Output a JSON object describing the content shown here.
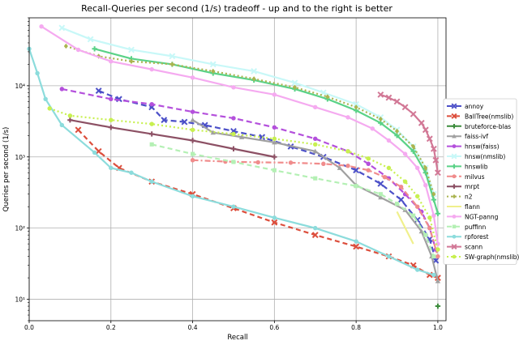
{
  "chart_data": {
    "type": "line",
    "title": "Recall-Queries per second (1/s) tradeoff - up and to the right is better",
    "xlabel": "Recall",
    "ylabel": "Queries per second (1/s)",
    "xlim": [
      0.0,
      1.02
    ],
    "ylim": [
      5,
      90000
    ],
    "yscale": "log",
    "grid": true,
    "legend_position": "right",
    "x_ticks": [
      0.0,
      0.2,
      0.4,
      0.6,
      0.8,
      1.0
    ],
    "x_tick_labels": [
      "0.0",
      "0.2",
      "0.4",
      "0.6",
      "0.8",
      "1.0"
    ],
    "y_ticks": [
      10,
      100,
      1000,
      10000
    ],
    "y_tick_labels": [
      "10¹",
      "10²",
      "10³",
      "10⁴"
    ],
    "series": [
      {
        "name": "annoy",
        "color": "#4c50c8",
        "dash": "7,4",
        "marker": "x",
        "points": [
          [
            0.17,
            8500
          ],
          [
            0.22,
            6500
          ],
          [
            0.3,
            5000
          ],
          [
            0.33,
            3300
          ],
          [
            0.38,
            3100
          ],
          [
            0.43,
            2800
          ],
          [
            0.5,
            2300
          ],
          [
            0.57,
            1900
          ],
          [
            0.64,
            1400
          ],
          [
            0.72,
            1000
          ],
          [
            0.8,
            650
          ],
          [
            0.86,
            420
          ],
          [
            0.91,
            250
          ],
          [
            0.95,
            130
          ],
          [
            0.98,
            70
          ],
          [
            0.995,
            35
          ]
        ]
      },
      {
        "name": "BallTree(nmslib)",
        "color": "#dc4e3c",
        "dash": "6,4",
        "marker": "x",
        "points": [
          [
            0.12,
            2400
          ],
          [
            0.17,
            1200
          ],
          [
            0.22,
            700
          ],
          [
            0.3,
            450
          ],
          [
            0.4,
            300
          ],
          [
            0.5,
            190
          ],
          [
            0.6,
            120
          ],
          [
            0.7,
            80
          ],
          [
            0.8,
            55
          ],
          [
            0.88,
            40
          ],
          [
            0.94,
            30
          ],
          [
            0.98,
            22
          ],
          [
            1.0,
            20
          ]
        ]
      },
      {
        "name": "bruteforce-blas",
        "color": "#3c8c3c",
        "dash": "",
        "marker": "plus",
        "points": [
          [
            1.0,
            8
          ]
        ]
      },
      {
        "name": "faiss-ivf",
        "color": "#a0a0a0",
        "dash": "",
        "marker": "triangle",
        "points": [
          [
            0.4,
            3300
          ],
          [
            0.45,
            2200
          ],
          [
            0.52,
            1900
          ],
          [
            0.6,
            1600
          ],
          [
            0.7,
            1200
          ],
          [
            0.76,
            700
          ],
          [
            0.8,
            400
          ],
          [
            0.86,
            270
          ],
          [
            0.92,
            180
          ],
          [
            0.96,
            90
          ],
          [
            0.985,
            40
          ],
          [
            1.0,
            18
          ]
        ]
      },
      {
        "name": "hnsw(faiss)",
        "color": "#b450dc",
        "dash": "7,4",
        "marker": "circle",
        "points": [
          [
            0.08,
            9000
          ],
          [
            0.2,
            6500
          ],
          [
            0.3,
            5500
          ],
          [
            0.4,
            4300
          ],
          [
            0.5,
            3500
          ],
          [
            0.6,
            2600
          ],
          [
            0.7,
            1800
          ],
          [
            0.78,
            1200
          ],
          [
            0.83,
            800
          ],
          [
            0.88,
            500
          ],
          [
            0.92,
            300
          ],
          [
            0.96,
            170
          ],
          [
            0.98,
            100
          ],
          [
            0.995,
            50
          ]
        ]
      },
      {
        "name": "hnsw(nmslib)",
        "color": "#c8f8f8",
        "dash": "",
        "marker": "x",
        "points": [
          [
            0.08,
            65000
          ],
          [
            0.15,
            45000
          ],
          [
            0.25,
            32000
          ],
          [
            0.35,
            26000
          ],
          [
            0.45,
            20000
          ],
          [
            0.55,
            16000
          ],
          [
            0.65,
            11000
          ],
          [
            0.72,
            8000
          ],
          [
            0.8,
            5500
          ],
          [
            0.86,
            3600
          ],
          [
            0.9,
            2400
          ],
          [
            0.94,
            1400
          ],
          [
            0.97,
            700
          ],
          [
            0.99,
            300
          ]
        ]
      },
      {
        "name": "hnswlib",
        "color": "#5ad287",
        "dash": "",
        "marker": "plus",
        "points": [
          [
            0.16,
            33000
          ],
          [
            0.25,
            24000
          ],
          [
            0.35,
            20000
          ],
          [
            0.45,
            15000
          ],
          [
            0.55,
            12000
          ],
          [
            0.65,
            9000
          ],
          [
            0.73,
            6500
          ],
          [
            0.8,
            4500
          ],
          [
            0.86,
            3000
          ],
          [
            0.9,
            2000
          ],
          [
            0.94,
            1200
          ],
          [
            0.97,
            600
          ],
          [
            0.99,
            250
          ],
          [
            1.0,
            160
          ]
        ]
      },
      {
        "name": "milvus",
        "color": "#f08c8c",
        "dash": "7,3,2,3",
        "marker": "circle",
        "points": [
          [
            0.4,
            900
          ],
          [
            0.48,
            860
          ],
          [
            0.56,
            840
          ],
          [
            0.64,
            830
          ],
          [
            0.72,
            800
          ],
          [
            0.78,
            750
          ],
          [
            0.83,
            650
          ],
          [
            0.87,
            520
          ],
          [
            0.91,
            380
          ],
          [
            0.95,
            200
          ],
          [
            0.98,
            100
          ],
          [
            1.0,
            40
          ]
        ]
      },
      {
        "name": "mrpt",
        "color": "#8c5064",
        "dash": "",
        "marker": "plus",
        "points": [
          [
            0.1,
            3300
          ],
          [
            0.2,
            2600
          ],
          [
            0.3,
            2100
          ],
          [
            0.4,
            1700
          ],
          [
            0.5,
            1300
          ],
          [
            0.6,
            1000
          ]
        ]
      },
      {
        "name": "n2",
        "color": "#aab450",
        "dash": "2,3",
        "marker": "diamond",
        "points": [
          [
            0.09,
            36000
          ],
          [
            0.17,
            26000
          ],
          [
            0.25,
            22000
          ],
          [
            0.35,
            20000
          ],
          [
            0.45,
            16000
          ],
          [
            0.55,
            12500
          ],
          [
            0.65,
            9500
          ],
          [
            0.73,
            7000
          ],
          [
            0.8,
            5000
          ],
          [
            0.86,
            3400
          ],
          [
            0.9,
            2300
          ],
          [
            0.94,
            1400
          ],
          [
            0.97,
            700
          ],
          [
            0.99,
            300
          ]
        ]
      },
      {
        "name": "flann",
        "color": "#f0f08c",
        "dash": "",
        "marker": "none",
        "points": [
          [
            0.9,
            170
          ],
          [
            0.94,
            60
          ]
        ]
      },
      {
        "name": "NGT-panng",
        "color": "#f5aaf0",
        "dash": "",
        "marker": "circle",
        "points": [
          [
            0.03,
            68000
          ],
          [
            0.12,
            32000
          ],
          [
            0.2,
            22000
          ],
          [
            0.3,
            17000
          ],
          [
            0.4,
            13000
          ],
          [
            0.5,
            9500
          ],
          [
            0.6,
            7500
          ],
          [
            0.7,
            5000
          ],
          [
            0.78,
            3600
          ],
          [
            0.84,
            2500
          ],
          [
            0.88,
            1700
          ],
          [
            0.92,
            1100
          ],
          [
            0.95,
            700
          ],
          [
            0.97,
            400
          ],
          [
            0.99,
            150
          ],
          [
            1.0,
            60
          ]
        ]
      },
      {
        "name": "puffinn",
        "color": "#b4f0b4",
        "dash": "6,4",
        "marker": "square",
        "points": [
          [
            0.3,
            1500
          ],
          [
            0.4,
            1100
          ],
          [
            0.5,
            850
          ],
          [
            0.6,
            650
          ],
          [
            0.7,
            500
          ],
          [
            0.8,
            390
          ],
          [
            0.86,
            300
          ],
          [
            0.9,
            220
          ],
          [
            0.94,
            150
          ],
          [
            0.97,
            80
          ],
          [
            0.99,
            40
          ]
        ]
      },
      {
        "name": "rpforest",
        "color": "#8cdcdc",
        "dash": "",
        "marker": "circle",
        "points": [
          [
            0.0,
            33000
          ],
          [
            0.02,
            15000
          ],
          [
            0.04,
            6500
          ],
          [
            0.08,
            2800
          ],
          [
            0.16,
            1150
          ],
          [
            0.2,
            700
          ],
          [
            0.25,
            600
          ],
          [
            0.3,
            450
          ],
          [
            0.4,
            280
          ],
          [
            0.5,
            200
          ],
          [
            0.6,
            140
          ],
          [
            0.7,
            100
          ],
          [
            0.8,
            65
          ],
          [
            0.88,
            40
          ],
          [
            0.95,
            26
          ],
          [
            0.99,
            22
          ]
        ]
      },
      {
        "name": "scann",
        "color": "#d27896",
        "dash": "",
        "marker": "x",
        "points": [
          [
            0.86,
            7500
          ],
          [
            0.88,
            6800
          ],
          [
            0.9,
            6000
          ],
          [
            0.92,
            5000
          ],
          [
            0.94,
            4000
          ],
          [
            0.96,
            3000
          ],
          [
            0.97,
            2400
          ],
          [
            0.98,
            1800
          ],
          [
            0.99,
            1300
          ],
          [
            0.995,
            900
          ],
          [
            1.0,
            600
          ]
        ]
      },
      {
        "name": "SW-graph(nmslib)",
        "color": "#c8f050",
        "dash": "2,3",
        "marker": "circle",
        "points": [
          [
            0.05,
            4800
          ],
          [
            0.1,
            3800
          ],
          [
            0.2,
            3300
          ],
          [
            0.3,
            2900
          ],
          [
            0.4,
            2400
          ],
          [
            0.5,
            2100
          ],
          [
            0.6,
            1800
          ],
          [
            0.7,
            1500
          ],
          [
            0.78,
            1200
          ],
          [
            0.83,
            950
          ],
          [
            0.88,
            700
          ],
          [
            0.92,
            450
          ],
          [
            0.95,
            280
          ],
          [
            0.98,
            140
          ],
          [
            1.0,
            50
          ]
        ]
      }
    ]
  }
}
